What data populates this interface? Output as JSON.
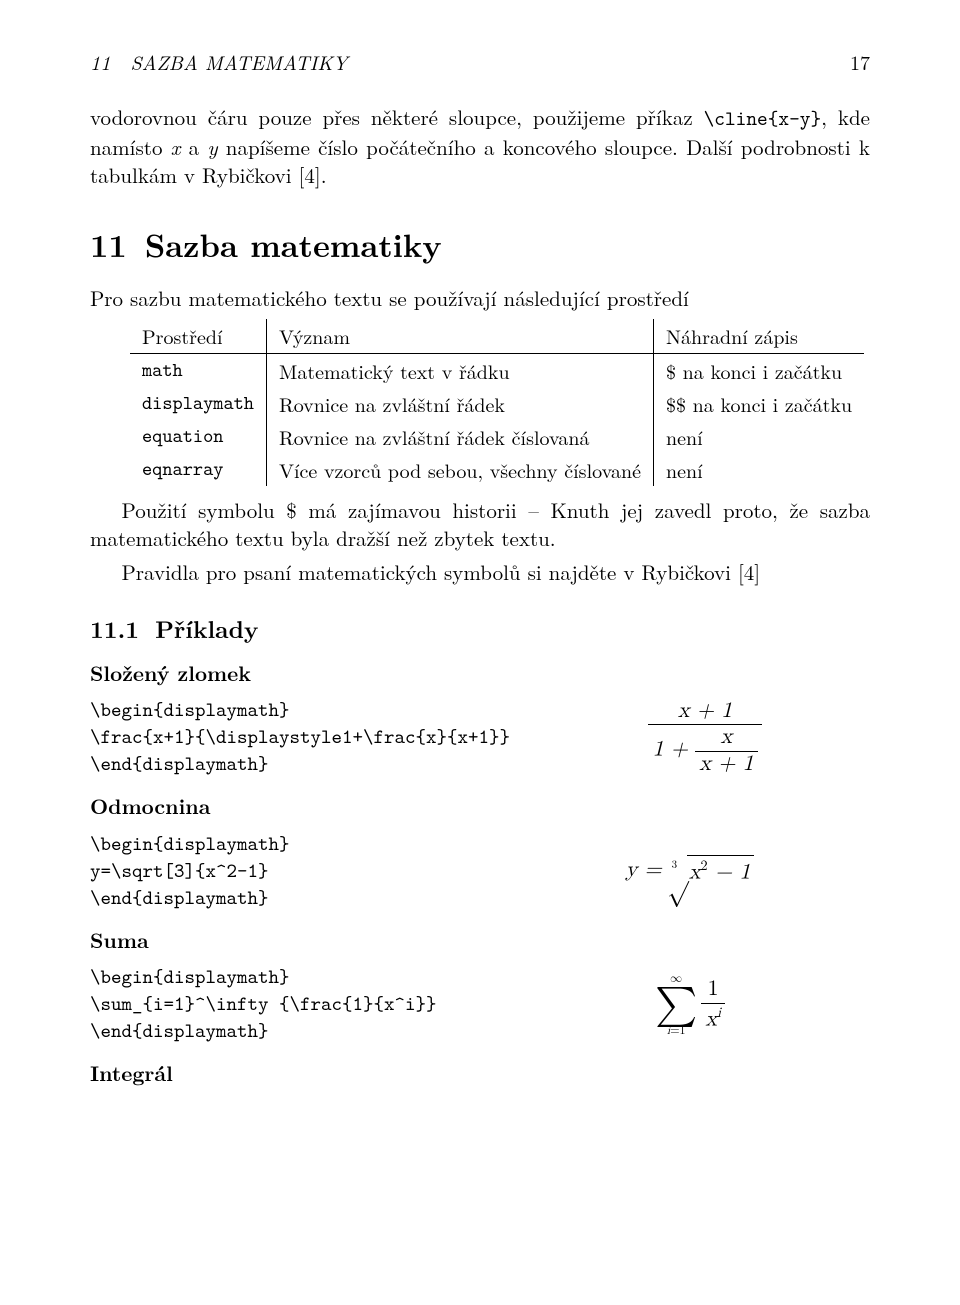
{
  "page": {
    "running_head_left": "11 SAZBA MATEMATIKY",
    "running_head_right": "17",
    "background_color": "#ffffff",
    "text_color": "#000000",
    "body_fontsize_pt": 11,
    "tt_font": "CMU Typewriter Text",
    "rm_font": "CMU Serif"
  },
  "intro": {
    "p1_a": "vodorovnou čáru pouze přes některé sloupce, použijeme příkaz ",
    "p1_cmd": "\\cline{x-y}",
    "p1_b": ", kde namísto ",
    "p1_x": "x",
    "p1_c": " a ",
    "p1_y": "y",
    "p1_d": " napíšeme číslo počátečního a koncového sloupce. Další podrobnosti k tabulkám v Rybičkovi [4]."
  },
  "section": {
    "num": "11",
    "title": "Sazba matematiky",
    "lead": "Pro sazbu matematického textu se používají následující prostředí"
  },
  "table": {
    "type": "table",
    "border_color": "#000000",
    "columns": [
      "Prostředí",
      "Význam",
      "Náhradní zápis"
    ],
    "rows": [
      [
        "math",
        "Matematický text v řádku",
        "$ na konci i začátku"
      ],
      [
        "displaymath",
        "Rovnice na zvláštní řádek",
        "$$ na konci i začátku"
      ],
      [
        "equation",
        "Rovnice na zvláštní řádek číslovaná",
        "není"
      ],
      [
        "eqnarray",
        "Více vzorců pod sebou, všechny číslované",
        "není"
      ]
    ]
  },
  "after_table": {
    "p1": "Použití symbolu $ má zajímavou historii – Knuth jej zavedl proto, že sazba matematického textu byla dražší než zbytek textu.",
    "p2": "Pravidla pro psaní matematických symbolů si najděte v Rybičkovi [4]"
  },
  "subsection": {
    "num": "11.1",
    "title": "Příklady"
  },
  "ex1": {
    "heading": "Složený zlomek",
    "code": "\\begin{displaymath}\n\\frac{x+1}{\\displaystyle1+\\frac{x}{x+1}}\n\\end{displaymath}",
    "math": {
      "top": "x + 1",
      "bot_left": "1 + ",
      "inner_top": "x",
      "inner_bot": "x + 1"
    }
  },
  "ex2": {
    "heading": "Odmocnina",
    "code": "\\begin{displaymath}\ny=\\sqrt[3]{x^2-1}\n\\end{displaymath}",
    "math": {
      "lhs": "y = ",
      "index": "3",
      "under_a": "x",
      "under_sup": "2",
      "under_b": " − 1"
    }
  },
  "ex3": {
    "heading": "Suma",
    "code": "\\begin{displaymath}\n\\sum_{i=1}^\\infty {\\frac{1}{x^i}}\n\\end{displaymath}",
    "math": {
      "upper": "∞",
      "op": "∑",
      "lower_a": "i",
      "lower_b": "=1",
      "frac_top": "1",
      "frac_bot_a": "x",
      "frac_bot_sup": "i"
    }
  },
  "ex4": {
    "heading": "Integrál"
  }
}
